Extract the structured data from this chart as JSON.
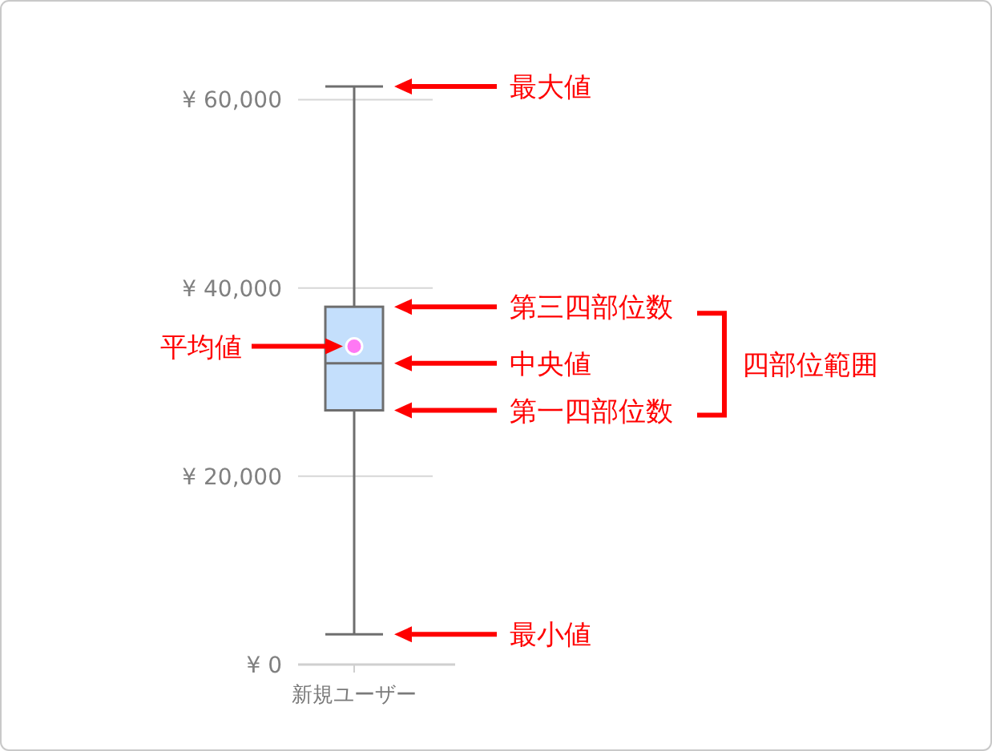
{
  "chart_data": {
    "type": "box",
    "categories": [
      "新規ユーザー"
    ],
    "color": "#c4dffc",
    "boxes": [
      {
        "low": 3200,
        "q1": 27000,
        "median": 32000,
        "q3": 38000,
        "high": 61400,
        "mean": 33800
      }
    ],
    "ylim": [
      0,
      61400
    ],
    "yticks": [
      {
        "value": 0,
        "label": "¥ 0"
      },
      {
        "value": 20000,
        "label": "¥ 20,000"
      },
      {
        "value": 40000,
        "label": "¥ 40,000"
      },
      {
        "value": 60000,
        "label": "¥ 60,000"
      }
    ],
    "grid": "y",
    "annotations": [
      "最大値",
      "第三四部位数",
      "中央値",
      "第一四部位数",
      "最小値",
      "平均値",
      "四部位範囲"
    ]
  }
}
